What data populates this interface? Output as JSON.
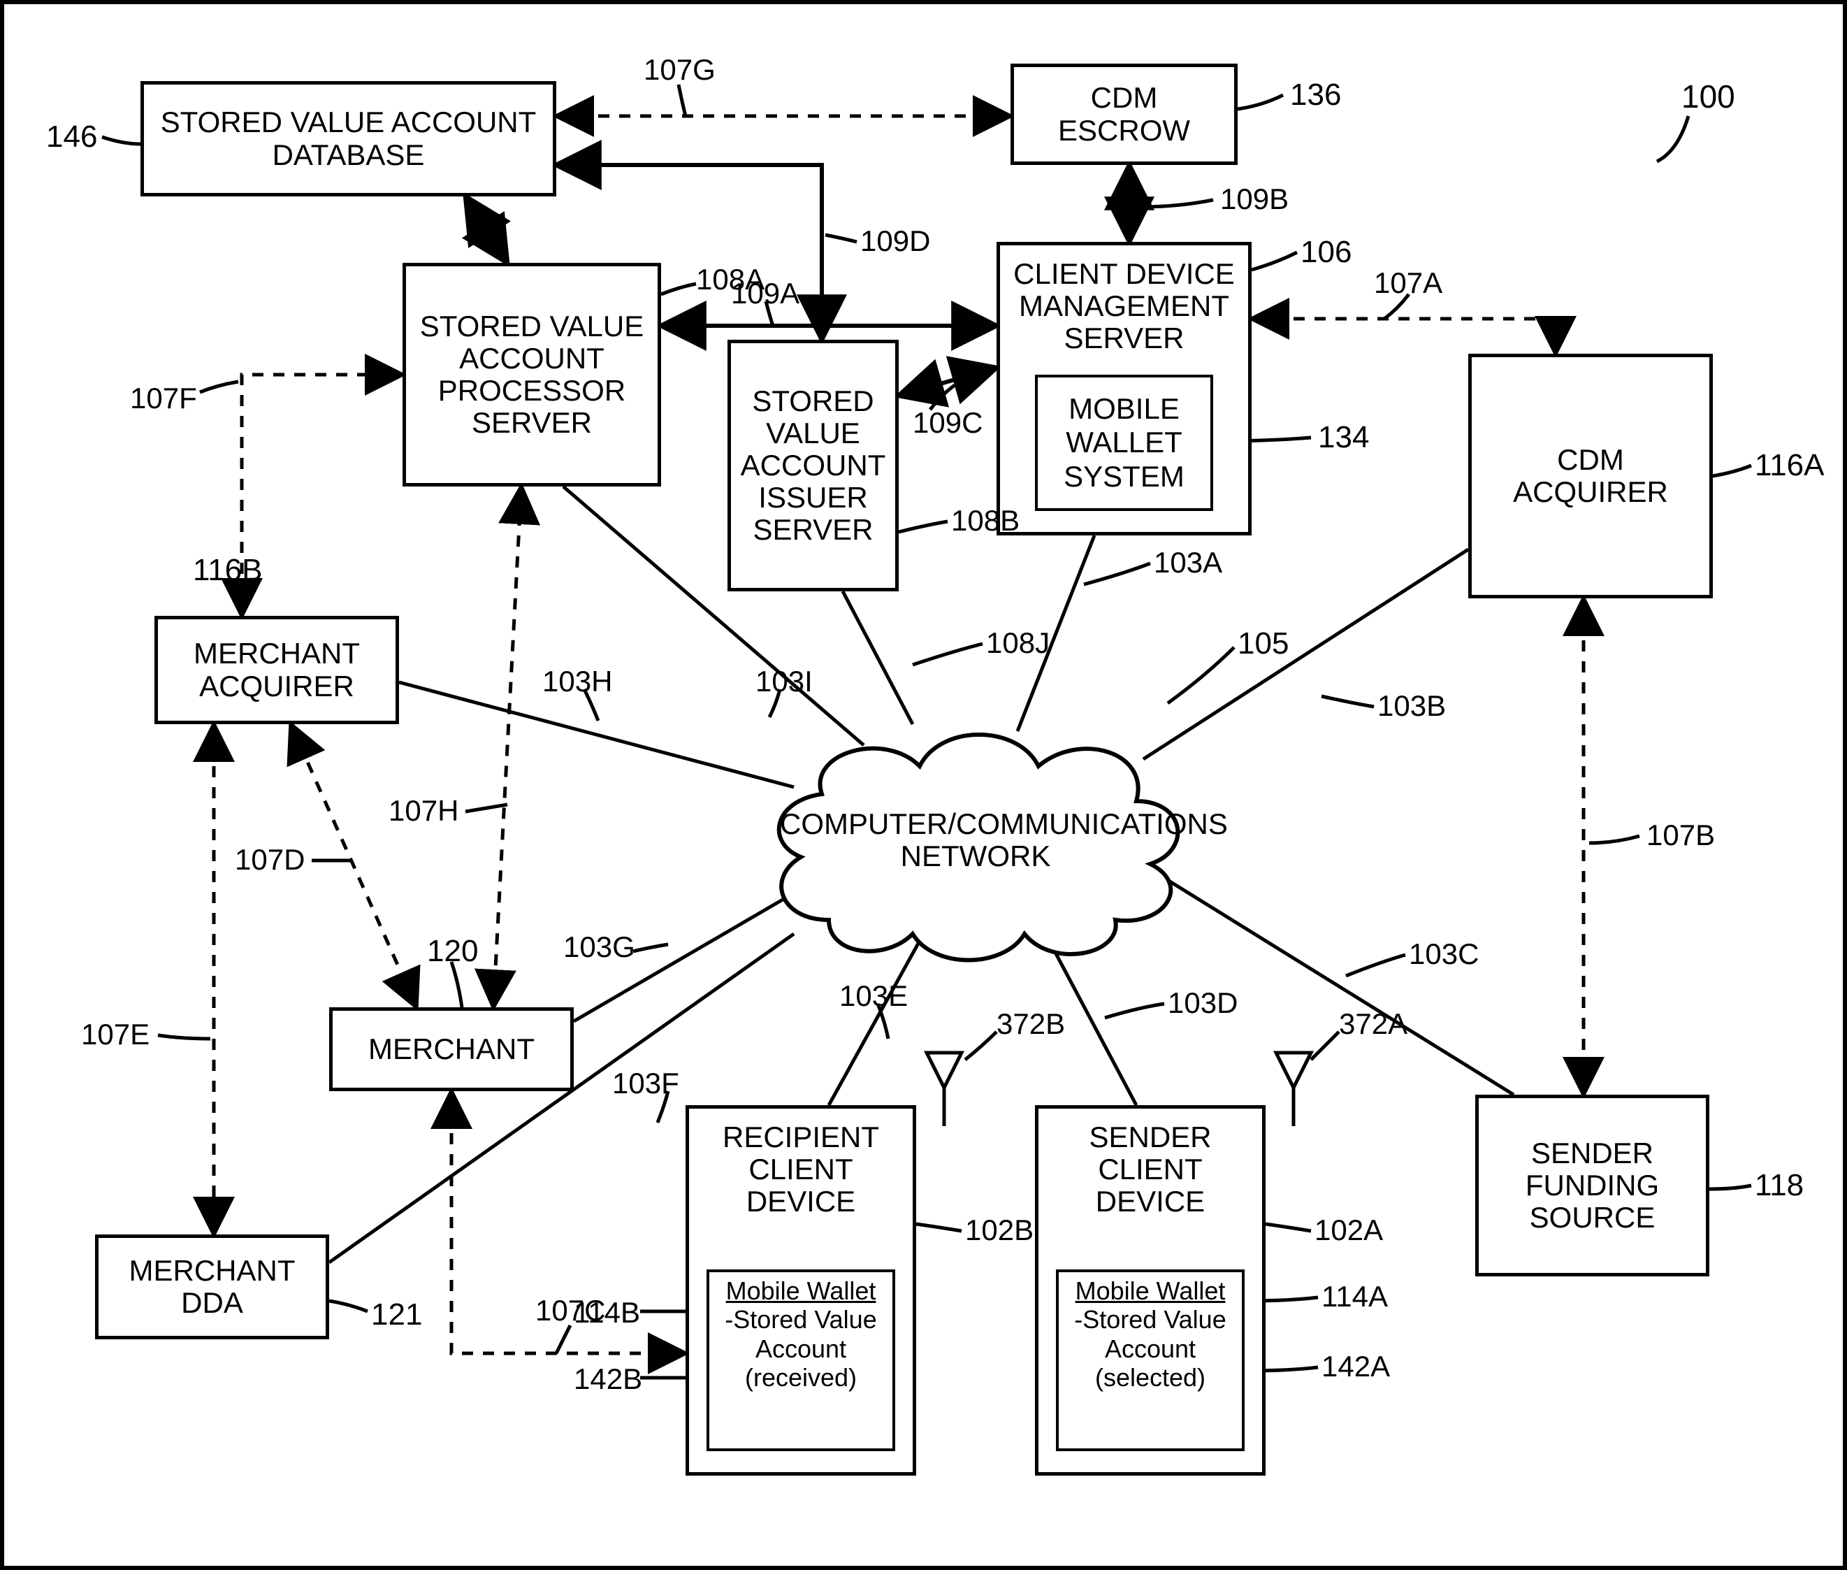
{
  "diagram": {
    "title_ref": "100",
    "fontsize_node": 42,
    "fontsize_label": 42,
    "fontsize_small": 34,
    "stroke_width": 5,
    "dash": "16 14",
    "color_line": "#000000",
    "nodes": {
      "svad": {
        "label": "STORED VALUE ACCOUNT\nDATABASE"
      },
      "svap": {
        "label": "STORED VALUE\nACCOUNT\nPROCESSOR\nSERVER"
      },
      "svais": {
        "label": "STORED\nVALUE\nACCOUNT\nISSUER\nSERVER"
      },
      "cdm_escrow": {
        "label": "CDM\nESCROW"
      },
      "cdms": {
        "label": "CLIENT DEVICE\nMANAGEMENT\nSERVER"
      },
      "mws": {
        "label": "MOBILE\nWALLET\nSYSTEM"
      },
      "cdm_acq": {
        "label": "CDM\nACQUIRER"
      },
      "merch_acq": {
        "label": "MERCHANT\nACQUIRER"
      },
      "merchant": {
        "label": "MERCHANT"
      },
      "merch_dda": {
        "label": "MERCHANT\nDDA"
      },
      "sender_fs": {
        "label": "SENDER\nFUNDING\nSOURCE"
      },
      "rcd": {
        "label": "RECIPIENT\nCLIENT\nDEVICE"
      },
      "scd": {
        "label": "SENDER\nCLIENT\nDEVICE"
      },
      "cloud": {
        "label": "COMPUTER/COMMUNICATIONS\nNETWORK"
      }
    },
    "inner": {
      "recipient_wallet": {
        "header": "Mobile Wallet",
        "lines": [
          "-Stored Value",
          "Account",
          "(received)"
        ]
      },
      "sender_wallet": {
        "header": "Mobile Wallet",
        "lines": [
          "-Stored Value",
          "Account",
          "(selected)"
        ]
      }
    },
    "labels": {
      "L100": "100",
      "L146": "146",
      "L136": "136",
      "L106": "106",
      "L134": "134",
      "L116A": "116A",
      "L116B": "116B",
      "L118": "118",
      "L120": "120",
      "L121": "121",
      "L105": "105",
      "L107A": "107A",
      "L107B": "107B",
      "L107C": "107C",
      "L107D": "107D",
      "L107E": "107E",
      "L107F": "107F",
      "L107G": "107G",
      "L107H": "107H",
      "L108A": "108A",
      "L108B": "108B",
      "L108J": "108J",
      "L109A": "109A",
      "L109B": "109B",
      "L109C": "109C",
      "L109D": "109D",
      "L103A": "103A",
      "L103B": "103B",
      "L103C": "103C",
      "L103D": "103D",
      "L103E": "103E",
      "L103F": "103F",
      "L103G": "103G",
      "L103H": "103H",
      "L103I": "103I",
      "L102A": "102A",
      "L102B": "102B",
      "L114A": "114A",
      "L114B": "114B",
      "L142A": "142A",
      "L142B": "142B",
      "L372A": "372A",
      "L372B": "372B"
    }
  }
}
